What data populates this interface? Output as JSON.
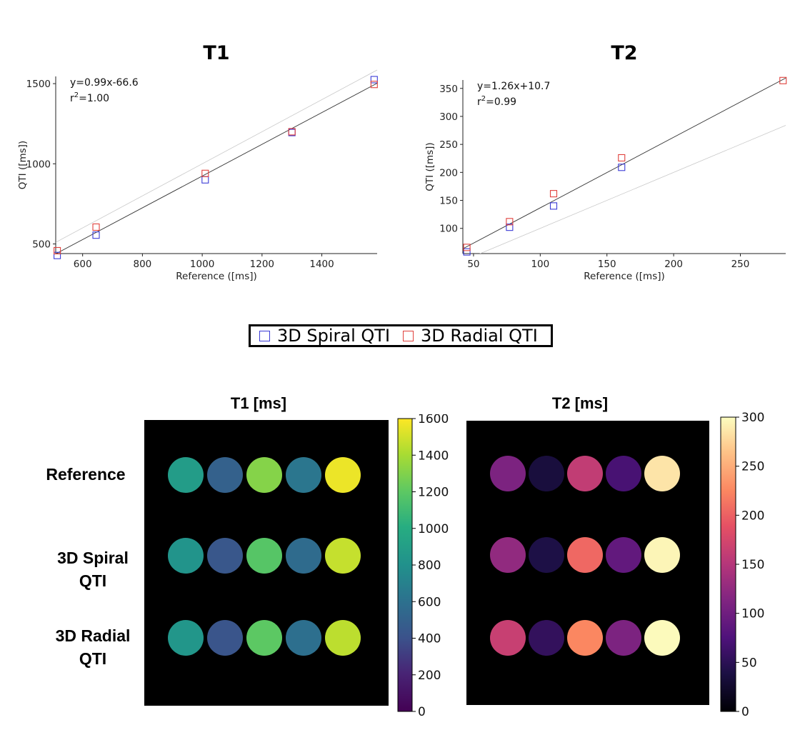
{
  "chart_data": [
    {
      "type": "scatter",
      "title": "T1",
      "xlabel": "Reference ([ms])",
      "ylabel": "QTI ([ms])",
      "xlim": [
        510,
        1585
      ],
      "ylim": [
        440,
        1545
      ],
      "xticks": [
        600,
        800,
        1000,
        1200,
        1400
      ],
      "yticks": [
        500,
        1000,
        1500
      ],
      "fit_equation": "y=0.99x-66.6",
      "fit_r2_prefix": "r",
      "fit_r2_value": "=1.00",
      "fit": {
        "slope": 0.99,
        "intercept": -66.6
      },
      "series": [
        {
          "name": "3D Spiral QTI",
          "color": "#3b3bd6",
          "x": [
            515,
            645,
            1010,
            1300,
            1575
          ],
          "y": [
            428,
            555,
            900,
            1195,
            1525
          ]
        },
        {
          "name": "3D Radial QTI",
          "color": "#e0403c",
          "x": [
            515,
            645,
            1010,
            1300,
            1575
          ],
          "y": [
            458,
            605,
            940,
            1200,
            1495
          ]
        }
      ]
    },
    {
      "type": "scatter",
      "title": "T2",
      "xlabel": "Reference ([ms])",
      "ylabel": "QTI ([ms])",
      "xlim": [
        42,
        284
      ],
      "ylim": [
        55,
        365
      ],
      "xticks": [
        50,
        100,
        150,
        200,
        250
      ],
      "yticks": [
        100,
        150,
        200,
        250,
        300,
        350
      ],
      "fit_equation": "y=1.26x+10.7",
      "fit_r2_prefix": "r",
      "fit_r2_value": "=0.99",
      "fit": {
        "slope": 1.26,
        "intercept": 10.7
      },
      "series": [
        {
          "name": "3D Spiral QTI",
          "color": "#3b3bd6",
          "x": [
            45,
            77,
            110,
            161
          ],
          "y": [
            58,
            102,
            140,
            209
          ]
        },
        {
          "name": "3D Radial QTI",
          "color": "#e0403c",
          "x": [
            45,
            77,
            110,
            161,
            282
          ],
          "y": [
            66,
            112,
            162,
            226,
            364
          ]
        }
      ]
    }
  ],
  "legend": {
    "spiral": "3D Spiral QTI",
    "radial": "3D Radial QTI",
    "spiral_color": "#3b3bd6",
    "radial_color": "#e0403c"
  },
  "maps": {
    "t1_title": "T1 [ms]",
    "t2_title": "T2 [ms]",
    "rows": [
      "Reference",
      "3D Spiral\nQTI",
      "3D Radial\nQTI"
    ],
    "t1_colorbar": {
      "min": 0,
      "max": 1600,
      "ticks": [
        0,
        200,
        400,
        600,
        800,
        1000,
        1200,
        1400,
        1600
      ]
    },
    "t2_colorbar": {
      "min": 0,
      "max": 300,
      "ticks": [
        0,
        50,
        100,
        150,
        200,
        250,
        300
      ]
    },
    "t1_values": [
      [
        880,
        500,
        1310,
        630,
        1560
      ],
      [
        820,
        430,
        1180,
        560,
        1470
      ],
      [
        840,
        420,
        1200,
        590,
        1450
      ]
    ],
    "t2_values": [
      [
        110,
        35,
        160,
        70,
        285
      ],
      [
        125,
        40,
        205,
        90,
        295
      ],
      [
        165,
        55,
        225,
        110,
        298
      ]
    ]
  }
}
